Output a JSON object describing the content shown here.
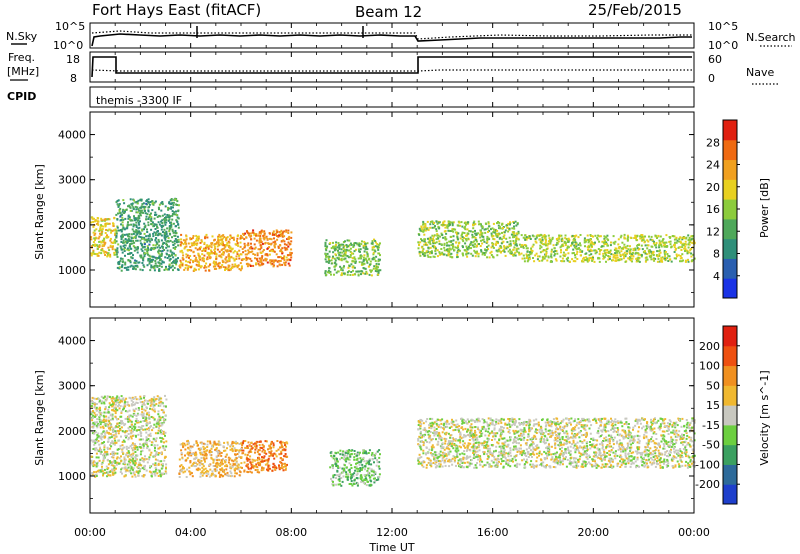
{
  "header": {
    "station": "Fort Hays East (fitACF)",
    "beam": "Beam 12",
    "date": "25/Feb/2015"
  },
  "panels": {
    "nsky_label": "N.Sky",
    "nsky_ticks": [
      "10^5",
      "10^0"
    ],
    "nsearch_label": "N.Search",
    "nsearch_ticks": [
      "10^5",
      "10^0"
    ],
    "freq_label": [
      "Freq.",
      "[MHz]"
    ],
    "freq_ticks": [
      "18",
      "8"
    ],
    "nave_label": "Nave",
    "nave_ticks": [
      "60",
      "0"
    ],
    "cpid_label": "CPID",
    "cpid_value": "themis -3300 IF"
  },
  "chart_data": [
    {
      "type": "heatmap",
      "title": "",
      "xlabel": "Time UT",
      "ylabel": "Slant Range [km]",
      "x_ticks": [
        "00:00",
        "04:00",
        "08:00",
        "12:00",
        "16:00",
        "20:00",
        "00:00"
      ],
      "y_ticks": [
        "1000",
        "2000",
        "3000",
        "4000"
      ],
      "ylim": [
        180,
        4500
      ],
      "colorbar": {
        "label": "Power [dB]",
        "ticks": [
          "4",
          "8",
          "12",
          "16",
          "20",
          "24",
          "28"
        ],
        "range": [
          0,
          32
        ],
        "colors": [
          "#1a33e6",
          "#2a5fb0",
          "#2f8f7a",
          "#4ea85a",
          "#8ccc3c",
          "#e8d020",
          "#f0a020",
          "#ef6a12",
          "#e02010"
        ]
      },
      "features": [
        {
          "t": [
            0.0,
            1.0
          ],
          "range": [
            1300,
            2200
          ],
          "value": 20
        },
        {
          "t": [
            1.0,
            3.5
          ],
          "range": [
            1000,
            2600
          ],
          "value": 11
        },
        {
          "t": [
            3.5,
            6.0
          ],
          "range": [
            1000,
            1800
          ],
          "value": 22
        },
        {
          "t": [
            6.0,
            8.0
          ],
          "range": [
            1100,
            1900
          ],
          "value": 25
        },
        {
          "t": [
            9.3,
            11.5
          ],
          "range": [
            900,
            1700
          ],
          "value": 15
        },
        {
          "t": [
            13.0,
            17.0
          ],
          "range": [
            1300,
            2100
          ],
          "value": 16
        },
        {
          "t": [
            17.0,
            24.0
          ],
          "range": [
            1200,
            1800
          ],
          "value": 17
        }
      ]
    },
    {
      "type": "heatmap",
      "title": "",
      "xlabel": "Time UT",
      "ylabel": "Slant Range [km]",
      "x_ticks": [
        "00:00",
        "04:00",
        "08:00",
        "12:00",
        "16:00",
        "20:00",
        "00:00"
      ],
      "y_ticks": [
        "1000",
        "2000",
        "3000",
        "4000"
      ],
      "ylim": [
        180,
        4500
      ],
      "colorbar": {
        "label": "Velocity [m s^-1]",
        "ticks": [
          "200",
          "100",
          "50",
          "15",
          "-15",
          "-50",
          "-100",
          "-200"
        ],
        "range": [
          -250,
          250
        ],
        "colors": [
          "#1e3fcc",
          "#2d6a9a",
          "#3ba060",
          "#6ccf40",
          "#c8c8c0",
          "#f0b830",
          "#f09020",
          "#ee5010",
          "#e02010"
        ]
      },
      "features": [
        {
          "t": [
            0.0,
            3.0
          ],
          "range": [
            1000,
            2800
          ],
          "value": 0
        },
        {
          "t": [
            3.5,
            6.0
          ],
          "range": [
            1000,
            1800
          ],
          "value": 60
        },
        {
          "t": [
            6.0,
            7.8
          ],
          "range": [
            1100,
            1800
          ],
          "value": 120
        },
        {
          "t": [
            9.5,
            11.5
          ],
          "range": [
            800,
            1600
          ],
          "value": -60
        },
        {
          "t": [
            13.0,
            24.0
          ],
          "range": [
            1200,
            2300
          ],
          "value": 0
        }
      ]
    }
  ]
}
